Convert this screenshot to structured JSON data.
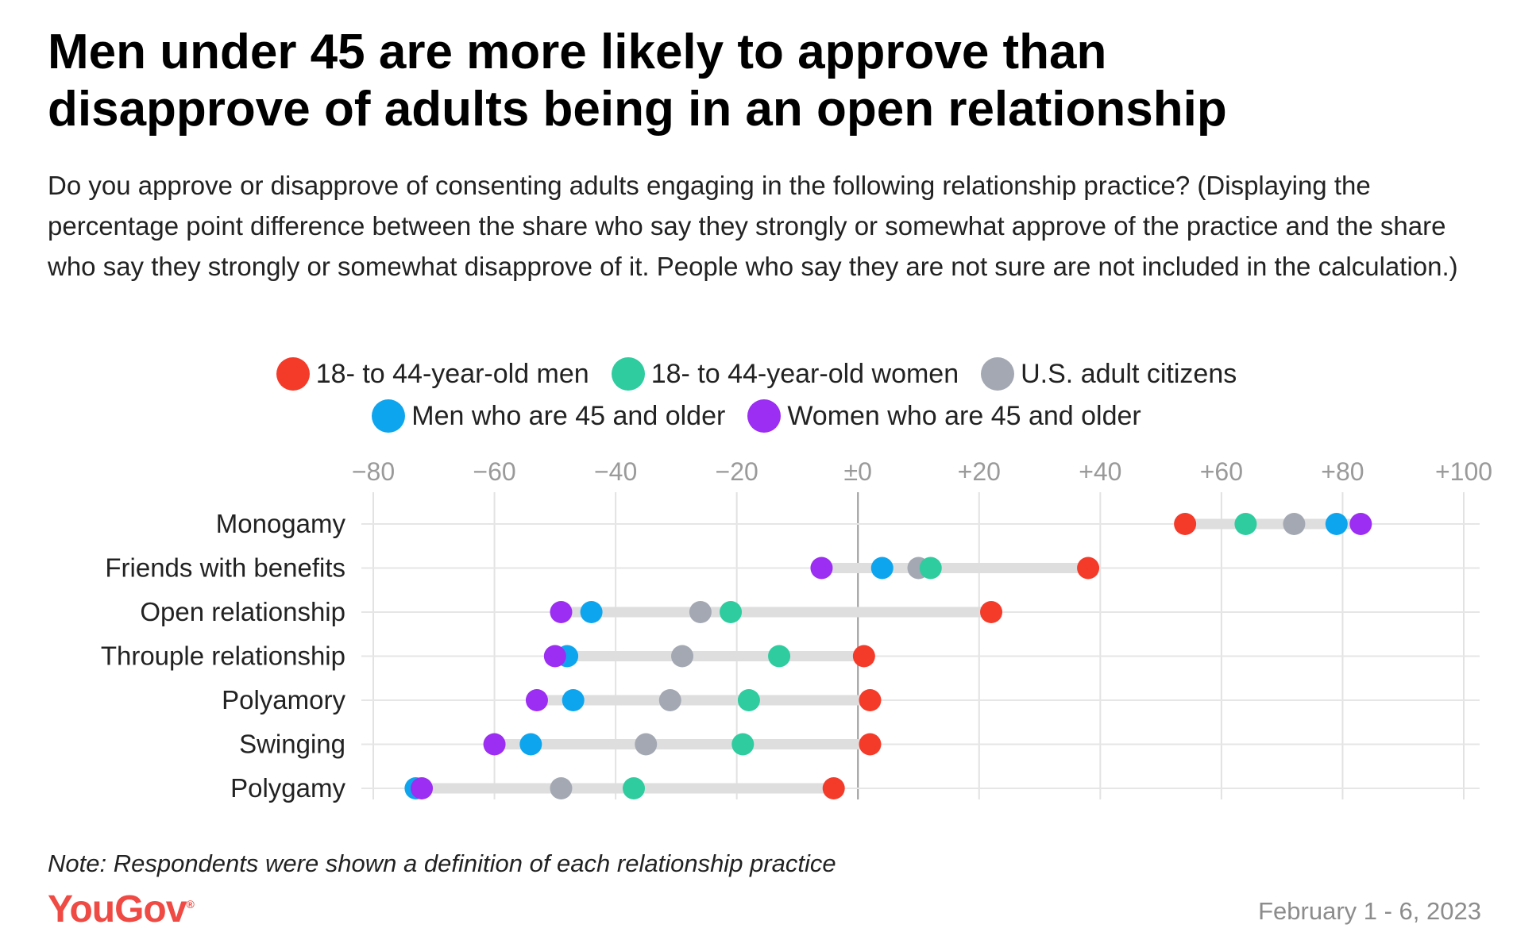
{
  "title_lines": [
    "Men under 45 are more likely to approve than",
    "disapprove of adults being in an open relationship"
  ],
  "subtitle": "Do you approve or disapprove of consenting adults engaging in the following relationship practice? (Displaying the percentage point difference between the share who say they strongly or somewhat approve of the practice and the share who say they strongly or somewhat disapprove of it. People who say they are not sure are not included in the calculation.)",
  "legend": {
    "row1": [
      {
        "label": "18- to 44-year-old men",
        "color": "#f43b2a"
      },
      {
        "label": "18- to 44-year-old women",
        "color": "#2ecc9f"
      },
      {
        "label": "U.S. adult citizens",
        "color": "#a3a8b3"
      }
    ],
    "row2": [
      {
        "label": "Men who are 45 and older",
        "color": "#0ea5ef"
      },
      {
        "label": "Women who are 45 and older",
        "color": "#9b2ef2"
      }
    ]
  },
  "note": "Note: Respondents were shown a definition of each relationship practice",
  "brand": "YouGov",
  "brand_mark": "®",
  "date": "February 1 - 6, 2023",
  "chart_data": {
    "type": "dot",
    "xlim": [
      -80,
      100
    ],
    "x_ticks": [
      -80,
      -60,
      -40,
      -20,
      0,
      20,
      40,
      60,
      80,
      100
    ],
    "x_tick_labels": [
      "−80",
      "−60",
      "−40",
      "−20",
      "±0",
      "+20",
      "+40",
      "+60",
      "+80",
      "+100"
    ],
    "categories": [
      "Monogamy",
      "Friends with benefits",
      "Open relationship",
      "Throuple relationship",
      "Polyamory",
      "Swinging",
      "Polygamy"
    ],
    "series": [
      {
        "name": "U.S. adult citizens",
        "color": "#a3a8b3",
        "values": [
          72,
          10,
          -26,
          -29,
          -31,
          -35,
          -49
        ]
      },
      {
        "name": "Men who are 45 and older",
        "color": "#0ea5ef",
        "values": [
          79,
          4,
          -44,
          -48,
          -47,
          -54,
          -73
        ]
      },
      {
        "name": "18- to 44-year-old women",
        "color": "#2ecc9f",
        "values": [
          64,
          12,
          -21,
          -13,
          -18,
          -19,
          -37
        ]
      },
      {
        "name": "Women who are 45 and older",
        "color": "#9b2ef2",
        "values": [
          83,
          -6,
          -49,
          -50,
          -53,
          -60,
          -72
        ]
      },
      {
        "name": "18- to 44-year-old men",
        "color": "#f43b2a",
        "values": [
          54,
          38,
          22,
          1,
          2,
          2,
          -4
        ]
      }
    ]
  }
}
